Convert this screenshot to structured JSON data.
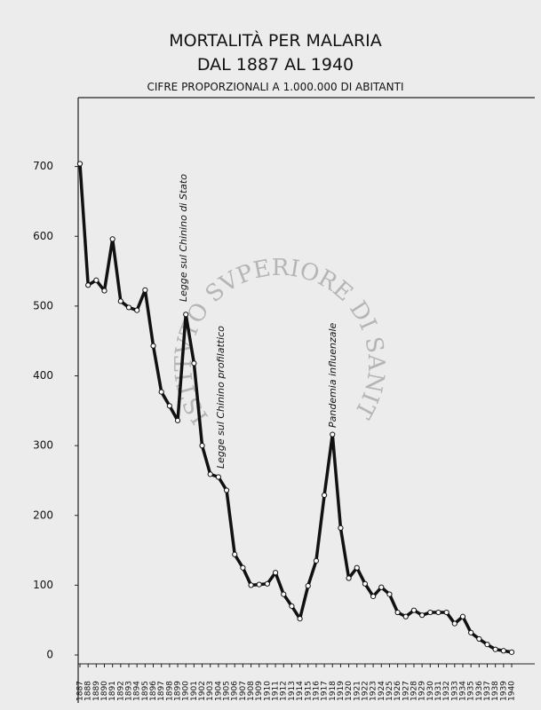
{
  "chart_data": {
    "type": "line",
    "title": "MORTALITÀ PER MALARIA",
    "subtitle": "DAL 1887 AL 1940",
    "note": "CIFRE PROPORZIONALI A 1.000.000 DI ABITANTI",
    "watermark": "ISTITVTO SVPERIORE DI SANITA",
    "annotations": [
      "Legge sul Chinino di Stato",
      "Legge sul Chinino profilattico",
      "Pandemia influenzale"
    ],
    "x": [
      1887,
      1888,
      1889,
      1890,
      1891,
      1892,
      1893,
      1894,
      1895,
      1896,
      1897,
      1898,
      1899,
      1900,
      1901,
      1902,
      1903,
      1904,
      1905,
      1906,
      1907,
      1908,
      1909,
      1910,
      1911,
      1912,
      1913,
      1914,
      1915,
      1916,
      1917,
      1918,
      1919,
      1920,
      1921,
      1922,
      1923,
      1924,
      1925,
      1926,
      1927,
      1928,
      1929,
      1930,
      1931,
      1932,
      1933,
      1934,
      1935,
      1936,
      1937,
      1938,
      1939,
      1940
    ],
    "values": [
      704,
      530,
      537,
      522,
      596,
      507,
      498,
      494,
      523,
      443,
      377,
      357,
      336,
      488,
      418,
      300,
      259,
      255,
      236,
      144,
      125,
      100,
      101,
      102,
      118,
      87,
      70,
      52,
      99,
      135,
      229,
      316,
      182,
      110,
      125,
      102,
      84,
      97,
      87,
      61,
      55,
      64,
      57,
      61,
      61,
      61,
      45,
      55,
      32,
      23,
      15,
      8,
      6,
      4
    ],
    "color": "#111111",
    "xlim": [
      1887,
      1940
    ],
    "ylim": [
      0,
      800
    ],
    "yticks": [
      0,
      100,
      200,
      300,
      400,
      500,
      600,
      700
    ],
    "grid": false
  }
}
